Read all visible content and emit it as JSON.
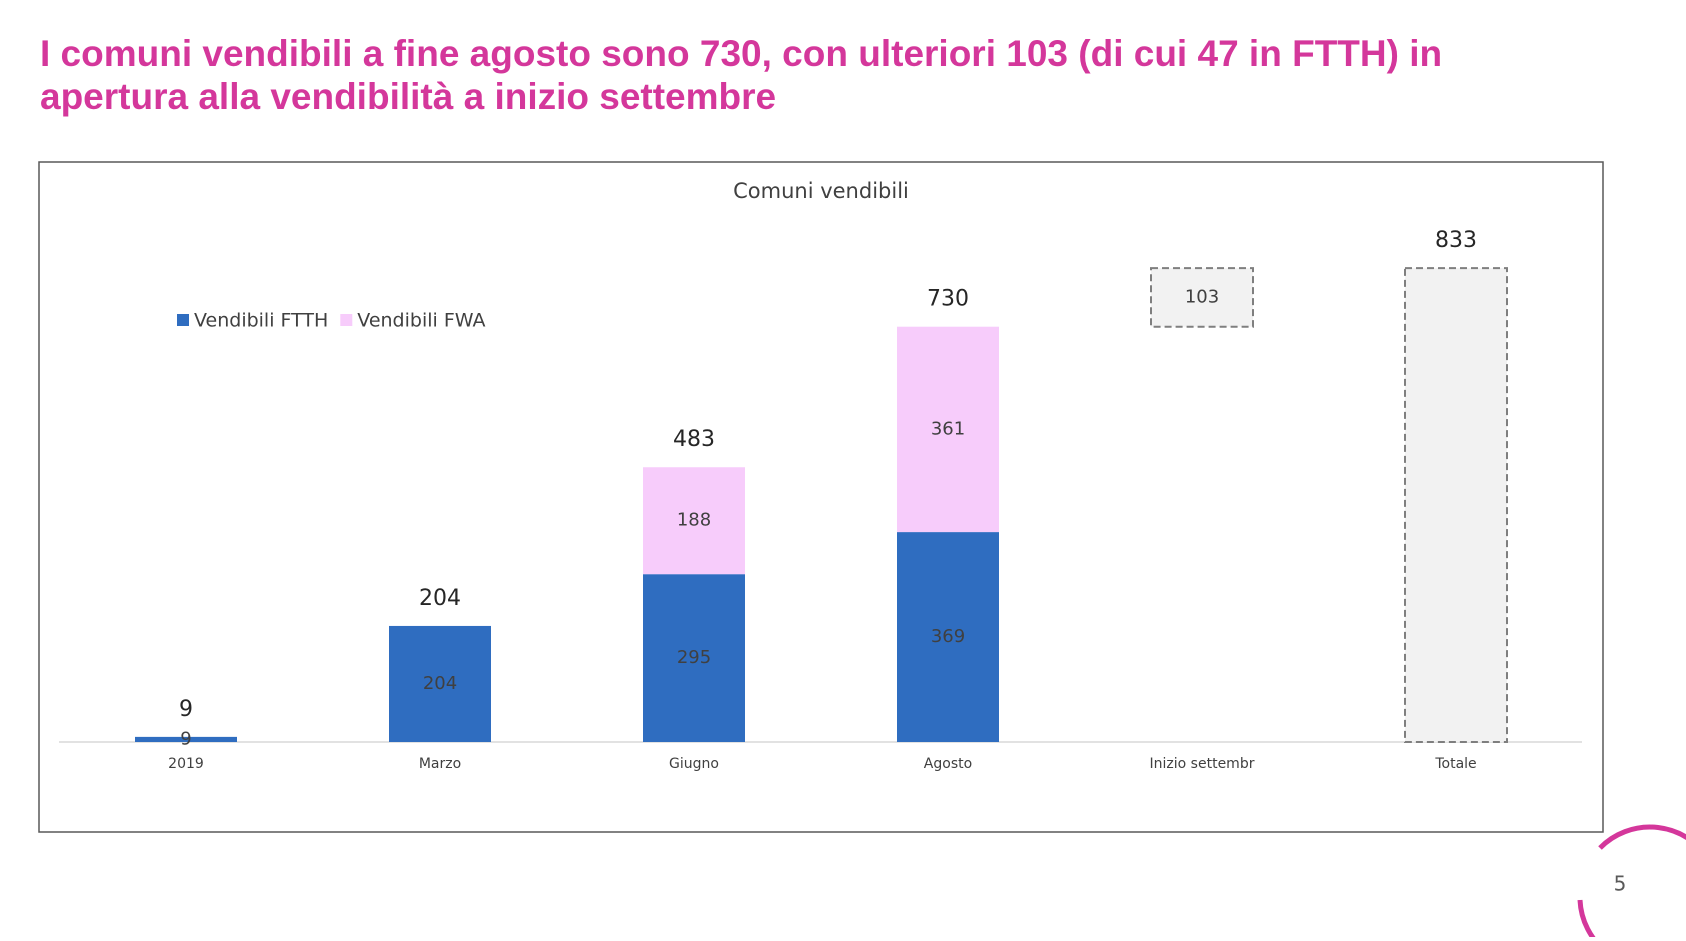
{
  "header": {
    "title_line1": "I comuni vendibili a fine agosto sono 730, con ulteriori 103 (di cui 47 in FTTH) in",
    "title_line2": "apertura alla vendibilità a inizio settembre"
  },
  "chart_data": {
    "type": "bar",
    "stacked": true,
    "title": "Comuni vendibili",
    "categories": [
      "2019",
      "Marzo",
      "Giugno",
      "Agosto",
      "Inizio settembr",
      "Totale"
    ],
    "series": [
      {
        "name": "Vendibili FTTH",
        "color": "#2f6dc0",
        "values": [
          9,
          204,
          295,
          369,
          null,
          null
        ]
      },
      {
        "name": "Vendibili FWA",
        "color": "#f7ccfb",
        "values": [
          null,
          null,
          188,
          361,
          null,
          null
        ]
      }
    ],
    "totals": [
      9,
      204,
      483,
      730,
      null,
      833
    ],
    "waterfall": {
      "color": "#f2f2f2",
      "values": [
        null,
        null,
        null,
        null,
        103,
        null
      ]
    },
    "ylim": [
      0,
      900
    ],
    "legend": "top-left"
  },
  "footer": {
    "page_number": "5"
  }
}
